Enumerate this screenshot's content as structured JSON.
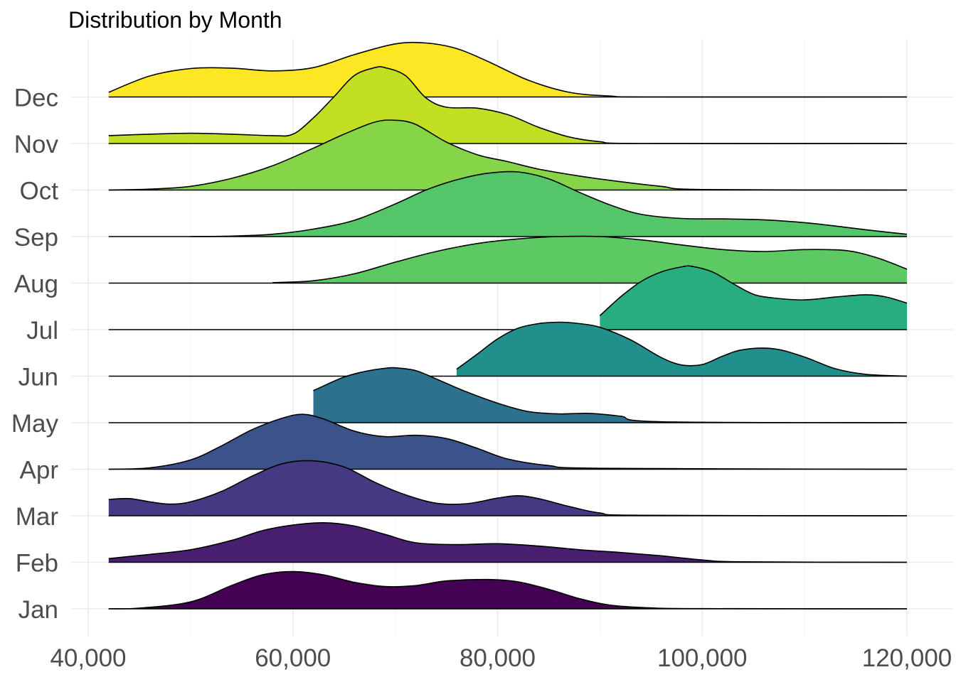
{
  "chart_data": {
    "type": "ridgeline",
    "title": "Distribution by Month",
    "xlabel": "",
    "ylabel": "",
    "xlim": [
      38000,
      122000
    ],
    "x_ticks": [
      40000,
      60000,
      80000,
      100000,
      120000
    ],
    "x_tick_labels": [
      "40,000",
      "60,000",
      "80,000",
      "100,000",
      "120,000"
    ],
    "grid": true,
    "legend": "none",
    "categories": [
      "Jan",
      "Feb",
      "Mar",
      "Apr",
      "May",
      "Jun",
      "Jul",
      "Aug",
      "Sep",
      "Oct",
      "Nov",
      "Dec"
    ],
    "density_scale": 2.9,
    "series": [
      {
        "name": "Jan",
        "color": "#440154",
        "x": [
          42000,
          45000,
          50000,
          54000,
          57000,
          60000,
          63000,
          66000,
          69000,
          72000,
          75000,
          79000,
          82000,
          85000,
          88000,
          91000,
          95000,
          100000,
          120000
        ],
        "density": [
          0.002,
          0.015,
          0.15,
          0.5,
          0.73,
          0.8,
          0.73,
          0.57,
          0.48,
          0.5,
          0.6,
          0.63,
          0.58,
          0.42,
          0.22,
          0.08,
          0.02,
          0.005,
          0.0
        ]
      },
      {
        "name": "Feb",
        "color": "#481F70",
        "x": [
          42000,
          46000,
          50000,
          54000,
          57000,
          60000,
          63000,
          66000,
          69000,
          72000,
          76000,
          80000,
          84000,
          88000,
          92000,
          96000,
          100000,
          104000,
          120000
        ],
        "density": [
          0.08,
          0.17,
          0.27,
          0.47,
          0.68,
          0.8,
          0.85,
          0.78,
          0.6,
          0.42,
          0.38,
          0.4,
          0.35,
          0.27,
          0.21,
          0.14,
          0.05,
          0.01,
          0.0
        ]
      },
      {
        "name": "Mar",
        "color": "#443983",
        "x": [
          42000,
          44000,
          46000,
          48000,
          50000,
          53000,
          56000,
          59000,
          62000,
          65000,
          68000,
          71000,
          74000,
          77000,
          80000,
          82000,
          84000,
          87000,
          90000,
          94000,
          120000
        ],
        "density": [
          0.35,
          0.37,
          0.3,
          0.25,
          0.3,
          0.52,
          0.85,
          1.12,
          1.18,
          1.05,
          0.72,
          0.45,
          0.27,
          0.26,
          0.38,
          0.43,
          0.37,
          0.2,
          0.06,
          0.01,
          0.0
        ]
      },
      {
        "name": "Apr",
        "color": "#3B528B",
        "x": [
          42000,
          46000,
          50000,
          53000,
          56000,
          59000,
          61000,
          63000,
          66000,
          69000,
          72000,
          75000,
          78000,
          81000,
          85000,
          90000,
          120000
        ],
        "density": [
          0.0,
          0.03,
          0.2,
          0.5,
          0.85,
          1.1,
          1.18,
          1.08,
          0.82,
          0.7,
          0.73,
          0.66,
          0.45,
          0.22,
          0.08,
          0.02,
          0.0
        ]
      },
      {
        "name": "May",
        "color": "#2C728E",
        "x": [
          62000,
          63000,
          65000,
          67000,
          69000,
          70000,
          72000,
          74000,
          77000,
          80000,
          83000,
          86000,
          89000,
          92000,
          96000,
          120000
        ],
        "density": [
          0.69,
          0.79,
          0.98,
          1.1,
          1.17,
          1.18,
          1.12,
          0.94,
          0.66,
          0.42,
          0.24,
          0.19,
          0.2,
          0.14,
          0.02,
          0.0
        ]
      },
      {
        "name": "Jun",
        "color": "#21908C",
        "x": [
          76000,
          78000,
          80000,
          82000,
          84000,
          86000,
          88000,
          90000,
          93000,
          96000,
          98000,
          100000,
          102000,
          104000,
          107000,
          110000,
          113000,
          116000,
          120000
        ],
        "density": [
          0.15,
          0.47,
          0.8,
          1.03,
          1.13,
          1.16,
          1.13,
          1.05,
          0.78,
          0.4,
          0.24,
          0.25,
          0.43,
          0.57,
          0.59,
          0.41,
          0.16,
          0.04,
          0.0
        ]
      },
      {
        "name": "Jul",
        "color": "#27AD81",
        "x": [
          90000,
          92000,
          94000,
          96000,
          98000,
          99000,
          101000,
          103000,
          105000,
          107000,
          110000,
          113000,
          116000,
          118000,
          120000
        ],
        "density": [
          0.3,
          0.7,
          1.03,
          1.24,
          1.35,
          1.36,
          1.24,
          0.99,
          0.76,
          0.68,
          0.64,
          0.7,
          0.75,
          0.7,
          0.57
        ]
      },
      {
        "name": "Aug",
        "color": "#5DC963",
        "x": [
          58000,
          62000,
          66000,
          70000,
          74000,
          78000,
          82000,
          86000,
          90000,
          94000,
          98000,
          102000,
          106000,
          110000,
          114000,
          117000,
          120000
        ],
        "density": [
          0.01,
          0.05,
          0.2,
          0.45,
          0.68,
          0.85,
          0.95,
          1.0,
          1.0,
          0.93,
          0.82,
          0.72,
          0.68,
          0.72,
          0.7,
          0.55,
          0.3
        ]
      },
      {
        "name": "Sep",
        "color": "#54C568",
        "x": [
          50000,
          54000,
          58000,
          62000,
          66000,
          70000,
          73000,
          76000,
          79000,
          82000,
          85000,
          88000,
          91000,
          94000,
          98000,
          102000,
          106000,
          110000,
          114000,
          117000,
          120000
        ],
        "density": [
          0.0,
          0.01,
          0.05,
          0.16,
          0.35,
          0.7,
          1.0,
          1.22,
          1.36,
          1.39,
          1.24,
          0.95,
          0.68,
          0.48,
          0.39,
          0.38,
          0.36,
          0.3,
          0.2,
          0.12,
          0.05
        ]
      },
      {
        "name": "Oct",
        "color": "#86D549",
        "x": [
          42000,
          46000,
          50000,
          54000,
          58000,
          62000,
          65000,
          68000,
          70000,
          72000,
          75000,
          78000,
          81000,
          84000,
          88000,
          92000,
          96000,
          100000,
          120000
        ],
        "density": [
          0.0,
          0.02,
          0.08,
          0.25,
          0.52,
          0.9,
          1.2,
          1.46,
          1.5,
          1.41,
          1.03,
          0.76,
          0.61,
          0.45,
          0.3,
          0.18,
          0.08,
          0.01,
          0.0
        ]
      },
      {
        "name": "Nov",
        "color": "#C2DF23",
        "x": [
          42000,
          46000,
          50000,
          54000,
          58000,
          60000,
          62000,
          64000,
          66000,
          68000,
          69000,
          71000,
          73000,
          75000,
          78000,
          81000,
          84000,
          87000,
          90000,
          94000,
          120000
        ],
        "density": [
          0.17,
          0.2,
          0.22,
          0.2,
          0.17,
          0.2,
          0.55,
          1.0,
          1.46,
          1.63,
          1.63,
          1.46,
          0.98,
          0.78,
          0.76,
          0.62,
          0.35,
          0.14,
          0.04,
          0.0,
          0.0
        ]
      },
      {
        "name": "Dec",
        "color": "#FDE725",
        "x": [
          42000,
          46000,
          50000,
          54000,
          58000,
          62000,
          66000,
          70000,
          73000,
          76000,
          79000,
          83000,
          87000,
          91000,
          95000,
          120000
        ],
        "density": [
          0.1,
          0.45,
          0.61,
          0.62,
          0.56,
          0.63,
          0.91,
          1.14,
          1.16,
          1.04,
          0.77,
          0.36,
          0.1,
          0.02,
          0.0,
          0.0
        ]
      }
    ]
  }
}
